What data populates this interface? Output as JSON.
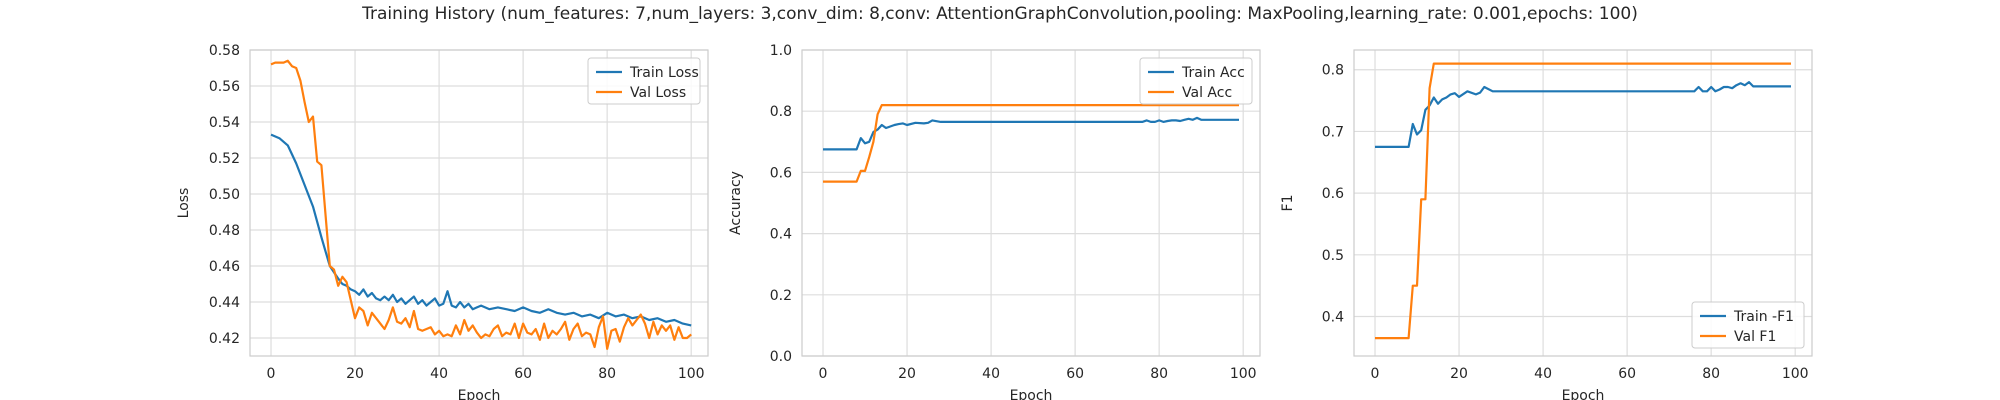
{
  "figure": {
    "title": "Training History (num_features: 7,num_layers: 3,conv_dim: 8,conv: AttentionGraphConvolution,pooling: MaxPooling,learning_rate: 0.001,epochs: 100)"
  },
  "colors": {
    "train": "#1f77b4",
    "val": "#ff7f0e",
    "grid": "#dddddd",
    "spine": "#cccccc",
    "text": "#262626"
  },
  "chart_data": [
    {
      "type": "line",
      "xlabel": "Epoch",
      "ylabel": "Loss",
      "xlim": [
        -5,
        104
      ],
      "ylim": [
        0.41,
        0.58
      ],
      "xticks": [
        0,
        20,
        40,
        60,
        80,
        100
      ],
      "yticks": [
        0.42,
        0.44,
        0.46,
        0.48,
        0.5,
        0.52,
        0.54,
        0.56,
        0.58
      ],
      "ytick_labels": [
        "0.42",
        "0.44",
        "0.46",
        "0.48",
        "0.50",
        "0.52",
        "0.54",
        "0.56",
        "0.58"
      ],
      "grid": true,
      "legend": "top-right",
      "series": [
        {
          "name": "Train Loss",
          "color": "#1f77b4",
          "x": [
            0,
            2,
            4,
            6,
            8,
            10,
            12,
            14,
            16,
            17,
            18,
            19,
            20,
            21,
            22,
            23,
            24,
            25,
            26,
            27,
            28,
            29,
            30,
            31,
            32,
            33,
            34,
            35,
            36,
            37,
            38,
            39,
            40,
            41,
            42,
            43,
            44,
            45,
            46,
            47,
            48,
            49,
            50,
            52,
            54,
            56,
            58,
            60,
            62,
            64,
            66,
            68,
            70,
            72,
            74,
            76,
            78,
            80,
            82,
            84,
            86,
            88,
            90,
            92,
            94,
            96,
            98,
            100
          ],
          "y": [
            0.533,
            0.531,
            0.527,
            0.517,
            0.505,
            0.493,
            0.476,
            0.46,
            0.453,
            0.45,
            0.449,
            0.447,
            0.446,
            0.444,
            0.447,
            0.443,
            0.445,
            0.442,
            0.441,
            0.443,
            0.441,
            0.444,
            0.44,
            0.442,
            0.439,
            0.441,
            0.443,
            0.439,
            0.441,
            0.438,
            0.44,
            0.442,
            0.438,
            0.439,
            0.446,
            0.438,
            0.437,
            0.44,
            0.437,
            0.439,
            0.436,
            0.437,
            0.438,
            0.436,
            0.437,
            0.436,
            0.435,
            0.437,
            0.435,
            0.434,
            0.436,
            0.434,
            0.433,
            0.434,
            0.432,
            0.433,
            0.431,
            0.434,
            0.432,
            0.433,
            0.431,
            0.432,
            0.43,
            0.431,
            0.429,
            0.43,
            0.428,
            0.427
          ]
        },
        {
          "name": "Val Loss",
          "color": "#ff7f0e",
          "x": [
            0,
            1,
            2,
            3,
            4,
            5,
            6,
            7,
            8,
            9,
            10,
            11,
            12,
            13,
            14,
            15,
            16,
            17,
            18,
            19,
            20,
            21,
            22,
            23,
            24,
            25,
            26,
            27,
            28,
            29,
            30,
            31,
            32,
            33,
            34,
            35,
            36,
            37,
            38,
            39,
            40,
            41,
            42,
            43,
            44,
            45,
            46,
            47,
            48,
            49,
            50,
            51,
            52,
            53,
            54,
            55,
            56,
            57,
            58,
            59,
            60,
            61,
            62,
            63,
            64,
            65,
            66,
            67,
            68,
            69,
            70,
            71,
            72,
            73,
            74,
            75,
            76,
            77,
            78,
            79,
            80,
            81,
            82,
            83,
            84,
            85,
            86,
            87,
            88,
            89,
            90,
            91,
            92,
            93,
            94,
            95,
            96,
            97,
            98,
            99,
            100
          ],
          "y": [
            0.572,
            0.573,
            0.573,
            0.573,
            0.574,
            0.571,
            0.57,
            0.563,
            0.551,
            0.54,
            0.543,
            0.518,
            0.516,
            0.488,
            0.46,
            0.458,
            0.449,
            0.454,
            0.451,
            0.441,
            0.431,
            0.437,
            0.435,
            0.427,
            0.434,
            0.431,
            0.428,
            0.425,
            0.43,
            0.437,
            0.429,
            0.428,
            0.431,
            0.426,
            0.435,
            0.425,
            0.424,
            0.425,
            0.426,
            0.422,
            0.424,
            0.421,
            0.422,
            0.421,
            0.427,
            0.422,
            0.43,
            0.424,
            0.427,
            0.423,
            0.42,
            0.422,
            0.421,
            0.425,
            0.427,
            0.421,
            0.423,
            0.422,
            0.428,
            0.42,
            0.428,
            0.423,
            0.422,
            0.425,
            0.419,
            0.428,
            0.42,
            0.424,
            0.422,
            0.425,
            0.429,
            0.419,
            0.425,
            0.428,
            0.421,
            0.423,
            0.422,
            0.415,
            0.426,
            0.432,
            0.414,
            0.424,
            0.425,
            0.418,
            0.426,
            0.431,
            0.427,
            0.43,
            0.433,
            0.428,
            0.42,
            0.429,
            0.422,
            0.427,
            0.424,
            0.427,
            0.419,
            0.426,
            0.42,
            0.42,
            0.422
          ]
        }
      ]
    },
    {
      "type": "line",
      "xlabel": "Epoch",
      "ylabel": "Accuracy",
      "xlim": [
        -5,
        104
      ],
      "ylim": [
        0.0,
        1.0
      ],
      "xticks": [
        0,
        20,
        40,
        60,
        80,
        100
      ],
      "yticks": [
        0.0,
        0.2,
        0.4,
        0.6,
        0.8,
        1.0
      ],
      "ytick_labels": [
        "0.0",
        "0.2",
        "0.4",
        "0.6",
        "0.8",
        "1.0"
      ],
      "grid": true,
      "legend": "top-right",
      "series": [
        {
          "name": "Train Acc",
          "color": "#1f77b4",
          "x": [
            0,
            2,
            4,
            6,
            8,
            9,
            10,
            11,
            12,
            13,
            14,
            15,
            16,
            17,
            18,
            19,
            20,
            22,
            24,
            25,
            26,
            28,
            30,
            40,
            50,
            60,
            70,
            76,
            77,
            78,
            79,
            80,
            81,
            82,
            83,
            84,
            85,
            86,
            87,
            88,
            89,
            90,
            92,
            94,
            96,
            98,
            99
          ],
          "y": [
            0.675,
            0.675,
            0.675,
            0.675,
            0.675,
            0.712,
            0.695,
            0.7,
            0.732,
            0.74,
            0.755,
            0.745,
            0.75,
            0.755,
            0.758,
            0.76,
            0.755,
            0.762,
            0.76,
            0.762,
            0.77,
            0.765,
            0.765,
            0.765,
            0.765,
            0.765,
            0.765,
            0.765,
            0.77,
            0.765,
            0.765,
            0.77,
            0.765,
            0.768,
            0.77,
            0.77,
            0.768,
            0.772,
            0.775,
            0.772,
            0.778,
            0.772,
            0.772,
            0.772,
            0.772,
            0.772,
            0.772
          ]
        },
        {
          "name": "Val Acc",
          "color": "#ff7f0e",
          "x": [
            0,
            8,
            9,
            10,
            11,
            12,
            13,
            14,
            15,
            20,
            40,
            60,
            80,
            99
          ],
          "y": [
            0.57,
            0.57,
            0.605,
            0.605,
            0.65,
            0.7,
            0.79,
            0.82,
            0.82,
            0.82,
            0.82,
            0.82,
            0.82,
            0.82
          ]
        }
      ]
    },
    {
      "type": "line",
      "xlabel": "Epoch",
      "ylabel": "F1",
      "xlim": [
        -5,
        104
      ],
      "ylim": [
        0.336,
        0.832
      ],
      "xticks": [
        0,
        20,
        40,
        60,
        80,
        100
      ],
      "yticks": [
        0.4,
        0.5,
        0.6,
        0.7,
        0.8
      ],
      "ytick_labels": [
        "0.4",
        "0.5",
        "0.6",
        "0.7",
        "0.8"
      ],
      "grid": true,
      "legend": "bottom-right",
      "series": [
        {
          "name": "Train -F1",
          "color": "#1f77b4",
          "x": [
            0,
            2,
            4,
            6,
            8,
            9,
            10,
            11,
            12,
            13,
            14,
            15,
            16,
            17,
            18,
            19,
            20,
            22,
            24,
            25,
            26,
            28,
            30,
            40,
            50,
            60,
            70,
            76,
            77,
            78,
            79,
            80,
            81,
            82,
            83,
            84,
            85,
            86,
            87,
            88,
            89,
            90,
            92,
            94,
            96,
            98,
            99
          ],
          "y": [
            0.675,
            0.675,
            0.675,
            0.675,
            0.675,
            0.712,
            0.695,
            0.702,
            0.735,
            0.742,
            0.755,
            0.745,
            0.752,
            0.755,
            0.76,
            0.762,
            0.756,
            0.765,
            0.76,
            0.763,
            0.772,
            0.765,
            0.765,
            0.765,
            0.765,
            0.765,
            0.765,
            0.765,
            0.772,
            0.765,
            0.765,
            0.772,
            0.765,
            0.768,
            0.772,
            0.772,
            0.77,
            0.775,
            0.778,
            0.775,
            0.78,
            0.773,
            0.773,
            0.773,
            0.773,
            0.773,
            0.773
          ]
        },
        {
          "name": "Val F1",
          "color": "#ff7f0e",
          "x": [
            0,
            8,
            9,
            10,
            11,
            12,
            13,
            14,
            15,
            20,
            40,
            60,
            80,
            99
          ],
          "y": [
            0.365,
            0.365,
            0.45,
            0.45,
            0.59,
            0.59,
            0.77,
            0.81,
            0.81,
            0.81,
            0.81,
            0.81,
            0.81,
            0.81
          ]
        }
      ]
    }
  ]
}
